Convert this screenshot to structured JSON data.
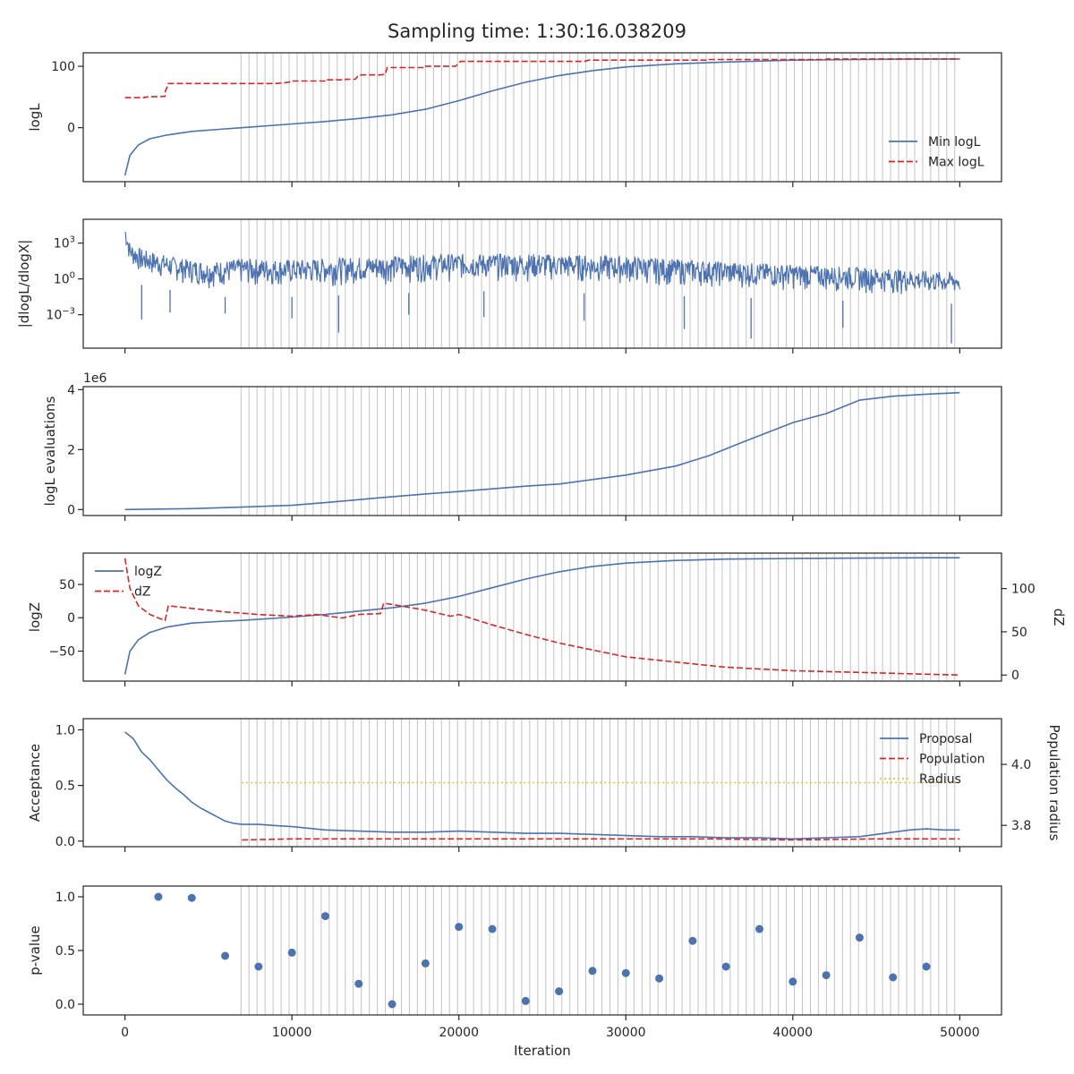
{
  "figure_title": "Sampling time: 1:30:16.038209",
  "colors": {
    "blue": "#4c72b0",
    "red": "#d62728",
    "gold": "#e6c229",
    "grid_line": "#b0b0b0",
    "axis": "#262626"
  },
  "chart_data": [
    {
      "type": "line",
      "ylabel": "logL",
      "xlim": [
        -2500,
        52500
      ],
      "ylim": [
        -88,
        122
      ],
      "yticks": [
        {
          "v": 0,
          "label": "0"
        },
        {
          "v": 100,
          "label": "100"
        }
      ],
      "legend": {
        "placement": "lower-right"
      },
      "series": [
        {
          "name": "Min logL",
          "style": "solid",
          "color": "blue",
          "x": [
            0,
            300,
            800,
            1500,
            2500,
            4000,
            6000,
            7000,
            10000,
            12000,
            14000,
            16000,
            18000,
            20000,
            22000,
            24000,
            26000,
            28000,
            30000,
            33000,
            36000,
            40000,
            44000,
            48000,
            50000
          ],
          "y": [
            -78,
            -45,
            -28,
            -18,
            -12,
            -6,
            -2,
            0,
            6,
            10,
            15,
            21,
            30,
            44,
            60,
            74,
            85,
            93,
            99,
            104,
            107,
            110,
            111,
            112,
            112
          ]
        },
        {
          "name": "Max logL",
          "style": "dashed",
          "color": "red",
          "x": [
            0,
            1200,
            1200,
            2400,
            2400,
            2600,
            2600,
            9000,
            9500,
            10000,
            10000,
            12000,
            12000,
            13200,
            13200,
            13800,
            14000,
            15300,
            15600,
            15700,
            15700,
            18000,
            18000,
            19800,
            20100,
            20100,
            27500,
            27800,
            27800,
            35000,
            35000,
            42000,
            42000,
            50000
          ],
          "y": [
            49,
            49,
            50,
            51,
            58,
            71,
            72,
            72,
            73,
            75,
            76,
            76,
            78,
            78,
            79,
            79,
            86,
            86,
            87,
            97,
            98,
            98,
            100,
            100,
            108,
            108,
            108,
            110,
            110,
            110,
            111,
            111,
            112,
            112
          ]
        }
      ]
    },
    {
      "type": "line",
      "ylabel": "|dlogL/dlogX|",
      "yscale": "log",
      "xlim": [
        -2500,
        52500
      ],
      "ylim_log10": [
        -5.8,
        5.0
      ],
      "yticks": [
        {
          "v": 3,
          "label": "10^3"
        },
        {
          "v": 0,
          "label": "10^0"
        },
        {
          "v": -3,
          "label": "10^-3"
        }
      ],
      "note": "noisy trace; drawn from band + notable spikes",
      "band_log10": {
        "x": [
          0,
          300,
          1000,
          3000,
          5000,
          7000,
          10000,
          15000,
          20000,
          25000,
          30000,
          35000,
          40000,
          45000,
          50000
        ],
        "upper": [
          4.5,
          3.0,
          2.5,
          1.8,
          1.4,
          1.7,
          1.6,
          1.9,
          2.1,
          2.1,
          1.9,
          1.5,
          1.2,
          0.9,
          0.5
        ],
        "lower": [
          2.0,
          0.0,
          -1.0,
          -1.5,
          -2.0,
          -2.0,
          -2.0,
          -1.8,
          -1.5,
          -1.6,
          -1.8,
          -2.0,
          -2.2,
          -2.4,
          -2.6
        ]
      },
      "spikes_log10": [
        {
          "x": 1000,
          "y": -3.4
        },
        {
          "x": 2700,
          "y": -2.8
        },
        {
          "x": 6000,
          "y": -2.9
        },
        {
          "x": 10000,
          "y": -3.3
        },
        {
          "x": 12800,
          "y": -4.5
        },
        {
          "x": 17000,
          "y": -3.0
        },
        {
          "x": 21500,
          "y": -3.2
        },
        {
          "x": 27500,
          "y": -3.5
        },
        {
          "x": 33500,
          "y": -4.2
        },
        {
          "x": 37500,
          "y": -5.0
        },
        {
          "x": 43000,
          "y": -4.1
        },
        {
          "x": 49500,
          "y": -5.4
        }
      ],
      "series": [
        {
          "name": "",
          "style": "solid",
          "color": "blue"
        }
      ]
    },
    {
      "type": "line",
      "ylabel": "logL evaluations",
      "offset_text": "1e6",
      "xlim": [
        -2500,
        52500
      ],
      "ylim": [
        -0.2,
        4.1
      ],
      "yticks": [
        {
          "v": 0,
          "label": "0"
        },
        {
          "v": 2,
          "label": "2"
        },
        {
          "v": 4,
          "label": "4"
        }
      ],
      "series": [
        {
          "name": "",
          "style": "solid",
          "color": "blue",
          "x": [
            0,
            4000,
            7000,
            10000,
            12000,
            15000,
            18000,
            20000,
            24000,
            26000,
            30000,
            33000,
            35000,
            37000,
            40000,
            42000,
            44000,
            46000,
            48000,
            50000
          ],
          "y": [
            0.0,
            0.03,
            0.08,
            0.14,
            0.23,
            0.38,
            0.52,
            0.6,
            0.78,
            0.85,
            1.15,
            1.45,
            1.8,
            2.25,
            2.9,
            3.2,
            3.65,
            3.78,
            3.85,
            3.9
          ]
        }
      ]
    },
    {
      "type": "line",
      "ylabel": "logZ",
      "y2label": "dZ",
      "xlim": [
        -2500,
        52500
      ],
      "ylim": [
        -95,
        97
      ],
      "y2lim": [
        -7,
        141
      ],
      "yticks": [
        {
          "v": -50,
          "label": "−50"
        },
        {
          "v": 0,
          "label": "0"
        },
        {
          "v": 50,
          "label": "50"
        }
      ],
      "y2ticks": [
        {
          "v": 0,
          "label": "0"
        },
        {
          "v": 50,
          "label": "50"
        },
        {
          "v": 100,
          "label": "100"
        }
      ],
      "legend": {
        "placement": "upper-left"
      },
      "series": [
        {
          "name": "logZ",
          "style": "solid",
          "color": "blue",
          "axis": "left",
          "x": [
            0,
            300,
            800,
            1500,
            2500,
            4000,
            6000,
            7000,
            10000,
            12000,
            14000,
            16000,
            18000,
            20000,
            22000,
            24000,
            26000,
            28000,
            30000,
            33000,
            36000,
            40000,
            44000,
            48000,
            50000
          ],
          "y": [
            -85,
            -50,
            -33,
            -22,
            -14,
            -8,
            -5,
            -4,
            1,
            5,
            10,
            15,
            22,
            32,
            45,
            58,
            69,
            77,
            82,
            86,
            88,
            89,
            89.5,
            90,
            90
          ]
        },
        {
          "name": "dZ",
          "style": "dashed",
          "color": "red",
          "axis": "right",
          "x": [
            0,
            300,
            800,
            1500,
            2400,
            2600,
            4000,
            6000,
            8000,
            10000,
            11500,
            13000,
            14000,
            15300,
            15500,
            16500,
            18000,
            19500,
            20000,
            22000,
            24000,
            26000,
            28000,
            30000,
            32000,
            34000,
            36000,
            40000,
            44000,
            48000,
            50000
          ],
          "y": [
            135,
            100,
            80,
            70,
            63,
            80,
            77,
            73,
            70,
            68,
            70,
            66,
            70,
            71,
            83,
            80,
            75,
            68,
            70,
            58,
            47,
            37,
            29,
            21,
            17,
            13,
            9,
            5,
            3,
            1,
            0
          ]
        }
      ]
    },
    {
      "type": "line",
      "ylabel": "Acceptance",
      "y2label": "Population radius",
      "xlim": [
        -2500,
        52500
      ],
      "ylim": [
        -0.05,
        1.1
      ],
      "y2lim": [
        3.73,
        4.15
      ],
      "yticks": [
        {
          "v": 0.0,
          "label": "0.0"
        },
        {
          "v": 0.5,
          "label": "0.5"
        },
        {
          "v": 1.0,
          "label": "1.0"
        }
      ],
      "y2ticks": [
        {
          "v": 3.8,
          "label": "3.8"
        },
        {
          "v": 4.0,
          "label": "4.0"
        }
      ],
      "legend": {
        "placement": "upper-right"
      },
      "series": [
        {
          "name": "Proposal",
          "style": "solid",
          "color": "blue",
          "x": [
            0,
            500,
            1000,
            1500,
            2000,
            2500,
            3000,
            3500,
            4000,
            4500,
            5000,
            5500,
            6000,
            6500,
            7000,
            8000,
            9000,
            10000,
            12000,
            14000,
            16000,
            18000,
            20000,
            22000,
            24000,
            26000,
            28000,
            30000,
            32000,
            34000,
            36000,
            38000,
            40000,
            42000,
            44000,
            45000,
            46000,
            47000,
            48000,
            49000,
            50000
          ],
          "y": [
            0.98,
            0.92,
            0.8,
            0.73,
            0.64,
            0.55,
            0.48,
            0.42,
            0.35,
            0.3,
            0.26,
            0.22,
            0.18,
            0.16,
            0.15,
            0.15,
            0.14,
            0.13,
            0.1,
            0.09,
            0.08,
            0.08,
            0.09,
            0.08,
            0.07,
            0.07,
            0.06,
            0.05,
            0.04,
            0.04,
            0.03,
            0.03,
            0.02,
            0.03,
            0.04,
            0.06,
            0.08,
            0.1,
            0.11,
            0.1,
            0.1
          ]
        },
        {
          "name": "Population",
          "style": "dashed",
          "color": "red",
          "x": [
            7000,
            10000,
            15000,
            20000,
            25000,
            30000,
            35000,
            40000,
            45000,
            50000
          ],
          "y": [
            0.01,
            0.02,
            0.02,
            0.02,
            0.02,
            0.02,
            0.02,
            0.01,
            0.02,
            0.02
          ]
        },
        {
          "name": "Radius",
          "style": "dotted",
          "color": "gold",
          "axis": "right",
          "x": [
            7000,
            50000
          ],
          "y": [
            3.94,
            3.94
          ]
        }
      ]
    },
    {
      "type": "scatter",
      "ylabel": "p-value",
      "xlabel": "Iteration",
      "xlim": [
        -2500,
        52500
      ],
      "ylim": [
        -0.1,
        1.1
      ],
      "yticks": [
        {
          "v": 0.0,
          "label": "0.0"
        },
        {
          "v": 0.5,
          "label": "0.5"
        },
        {
          "v": 1.0,
          "label": "1.0"
        }
      ],
      "xticks": [
        {
          "v": 0,
          "label": "0"
        },
        {
          "v": 10000,
          "label": "10000"
        },
        {
          "v": 20000,
          "label": "20000"
        },
        {
          "v": 30000,
          "label": "30000"
        },
        {
          "v": 40000,
          "label": "40000"
        },
        {
          "v": 50000,
          "label": "50000"
        }
      ],
      "series": [
        {
          "name": "",
          "color": "blue",
          "x": [
            2000,
            4000,
            6000,
            8000,
            10000,
            12000,
            14000,
            16000,
            18000,
            20000,
            22000,
            24000,
            26000,
            28000,
            30000,
            32000,
            34000,
            36000,
            38000,
            40000,
            42000,
            44000,
            46000,
            48000
          ],
          "y": [
            1.0,
            0.99,
            0.45,
            0.35,
            0.48,
            0.82,
            0.19,
            0.0,
            0.38,
            0.72,
            0.7,
            0.03,
            0.12,
            0.31,
            0.29,
            0.24,
            0.59,
            0.35,
            0.7,
            0.21,
            0.27,
            0.62,
            0.25,
            0.35
          ]
        }
      ]
    }
  ],
  "insertion_markers": {
    "start": 6950,
    "end": 49700,
    "count": 90,
    "color": "grid_line"
  }
}
